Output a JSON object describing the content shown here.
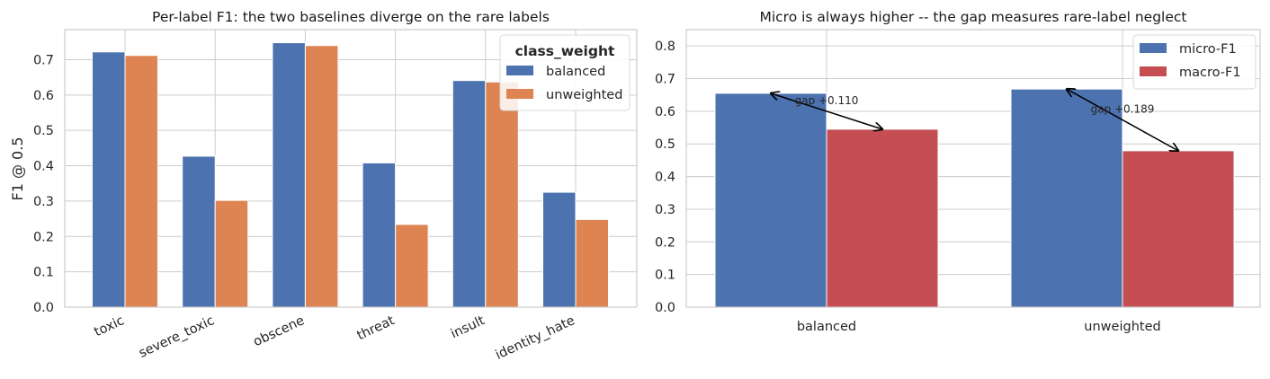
{
  "chart_data": [
    {
      "type": "bar",
      "title": "Per-label F1: the two baselines diverge on the rare labels",
      "xlabel": "",
      "ylabel": "F1 @ 0.5",
      "categories": [
        "toxic",
        "severe_toxic",
        "obscene",
        "threat",
        "insult",
        "identity_hate"
      ],
      "series": [
        {
          "name": "balanced",
          "color": "#4c72b0",
          "values": [
            0.722,
            0.427,
            0.748,
            0.408,
            0.641,
            0.325
          ]
        },
        {
          "name": "unweighted",
          "color": "#dd8452",
          "values": [
            0.712,
            0.302,
            0.74,
            0.234,
            0.637,
            0.248
          ]
        }
      ],
      "ylim": [
        0,
        0.785
      ],
      "yticks": [
        "0.0",
        "0.1",
        "0.2",
        "0.3",
        "0.4",
        "0.5",
        "0.6",
        "0.7"
      ],
      "legend": {
        "title": "class_weight",
        "placement": "top-right"
      },
      "grid": true
    },
    {
      "type": "bar",
      "title": "Micro is always higher -- the gap measures rare-label neglect",
      "xlabel": "",
      "ylabel": "",
      "categories": [
        "balanced",
        "unweighted"
      ],
      "series": [
        {
          "name": "micro-F1",
          "color": "#4c72b0",
          "values": [
            0.655,
            0.668
          ]
        },
        {
          "name": "macro-F1",
          "color": "#c44e52",
          "values": [
            0.545,
            0.479
          ]
        }
      ],
      "ylim": [
        0,
        0.85
      ],
      "yticks": [
        "0.0",
        "0.1",
        "0.2",
        "0.3",
        "0.4",
        "0.5",
        "0.6",
        "0.7",
        "0.8"
      ],
      "annotations": [
        "gap +0.110",
        "gap +0.189"
      ],
      "legend": {
        "placement": "top-right"
      },
      "grid": true
    }
  ]
}
